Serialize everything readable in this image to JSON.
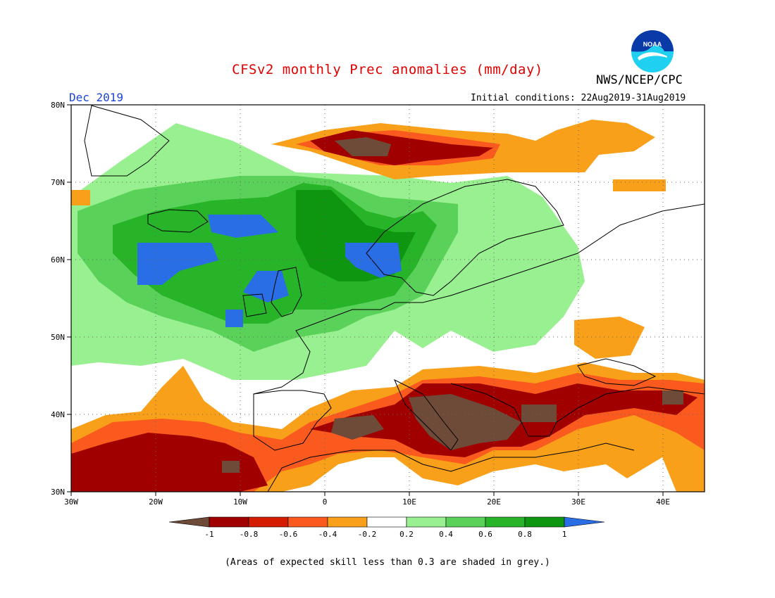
{
  "header": {
    "title": "CFSv2 monthly Prec anomalies (mm/day)",
    "org": "NWS/NCEP/CPC",
    "month": "Dec 2019",
    "initial_conditions": "Initial conditions: 22Aug2019-31Aug2019",
    "logo_text": "NOAA"
  },
  "map": {
    "lon_range": [
      -30,
      45
    ],
    "lat_range": [
      30,
      80
    ],
    "lon_labels": [
      "30W",
      "20W",
      "10W",
      "0",
      "10E",
      "20E",
      "30E",
      "40E"
    ],
    "lat_labels": [
      "80N",
      "70N",
      "60N",
      "50N",
      "40N",
      "30N"
    ]
  },
  "colorbar": {
    "labels": [
      "-1",
      "-0.8",
      "-0.6",
      "-0.4",
      "-0.2",
      "0.2",
      "0.4",
      "0.6",
      "0.8",
      "1"
    ],
    "colors": [
      "#6e4a38",
      "#a00000",
      "#d41c00",
      "#fa5a1e",
      "#f9a01a",
      "#ffffff",
      "#98f090",
      "#5ad25a",
      "#28b428",
      "#0e9610",
      "#2a6ee6"
    ]
  },
  "footer": {
    "note": "(Areas of expected skill less than 0.3 are shaded in grey.)"
  }
}
